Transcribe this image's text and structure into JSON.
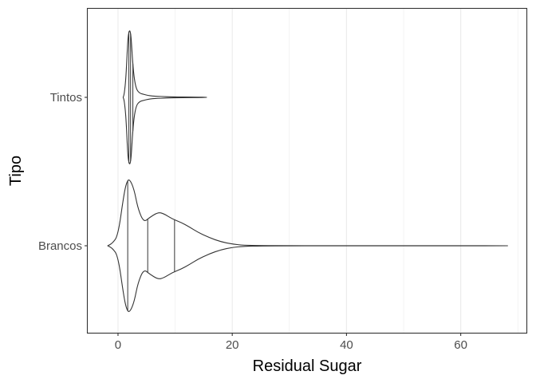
{
  "chart_data": {
    "type": "violin",
    "orientation": "horizontal",
    "xlabel": "Residual Sugar",
    "ylabel": "Tipo",
    "xlim": [
      -5.3,
      71.5
    ],
    "x_ticks": [
      0,
      20,
      40,
      60
    ],
    "x_tick_labels": [
      "0",
      "20",
      "40",
      "60"
    ],
    "categories": [
      "Tintos",
      "Brancos"
    ],
    "grid": true,
    "theme": "bw",
    "quantile_lines": [
      0.25,
      0.5,
      0.75
    ],
    "series": [
      {
        "name": "Tintos",
        "range": [
          0.9,
          15.5
        ],
        "quantiles": [
          1.9,
          2.2,
          2.6
        ],
        "density_profile": [
          [
            0.9,
            0.0
          ],
          [
            1.1,
            0.05
          ],
          [
            1.4,
            0.3
          ],
          [
            1.7,
            0.85
          ],
          [
            1.9,
            0.98
          ],
          [
            2.1,
            1.0
          ],
          [
            2.3,
            0.9
          ],
          [
            2.5,
            0.6
          ],
          [
            2.8,
            0.3
          ],
          [
            3.2,
            0.12
          ],
          [
            3.8,
            0.06
          ],
          [
            4.5,
            0.045
          ],
          [
            5.2,
            0.03
          ],
          [
            6.0,
            0.02
          ],
          [
            7.0,
            0.015
          ],
          [
            8.0,
            0.012
          ],
          [
            9.0,
            0.008
          ],
          [
            10.5,
            0.006
          ],
          [
            12.0,
            0.005
          ],
          [
            14.0,
            0.004
          ],
          [
            15.5,
            0.0
          ]
        ]
      },
      {
        "name": "Brancos",
        "range": [
          -1.8,
          68.2
        ],
        "quantiles": [
          1.7,
          5.2,
          9.9
        ],
        "density_profile": [
          [
            -1.8,
            0.0
          ],
          [
            -1.0,
            0.035
          ],
          [
            0.0,
            0.15
          ],
          [
            1.0,
            0.75
          ],
          [
            1.5,
            0.95
          ],
          [
            2.0,
            1.0
          ],
          [
            2.8,
            0.85
          ],
          [
            3.5,
            0.55
          ],
          [
            4.5,
            0.35
          ],
          [
            5.5,
            0.42
          ],
          [
            7.0,
            0.5
          ],
          [
            8.0,
            0.48
          ],
          [
            9.5,
            0.4
          ],
          [
            11.0,
            0.35
          ],
          [
            12.5,
            0.28
          ],
          [
            14.0,
            0.2
          ],
          [
            16.0,
            0.12
          ],
          [
            18.0,
            0.06
          ],
          [
            20.0,
            0.025
          ],
          [
            22.0,
            0.008
          ],
          [
            25.0,
            0.003
          ],
          [
            30.0,
            0.001
          ],
          [
            40.0,
            0.0008
          ],
          [
            50.0,
            0.0005
          ],
          [
            60.0,
            0.0004
          ],
          [
            68.2,
            0.0
          ]
        ]
      }
    ]
  },
  "colors": {
    "background": "#ffffff",
    "panel_border": "#333333",
    "grid_major": "#ebebeb",
    "violin_stroke": "#333333",
    "violin_fill": "#ffffff",
    "tick_label": "#4d4d4d",
    "axis_title": "#000000"
  }
}
